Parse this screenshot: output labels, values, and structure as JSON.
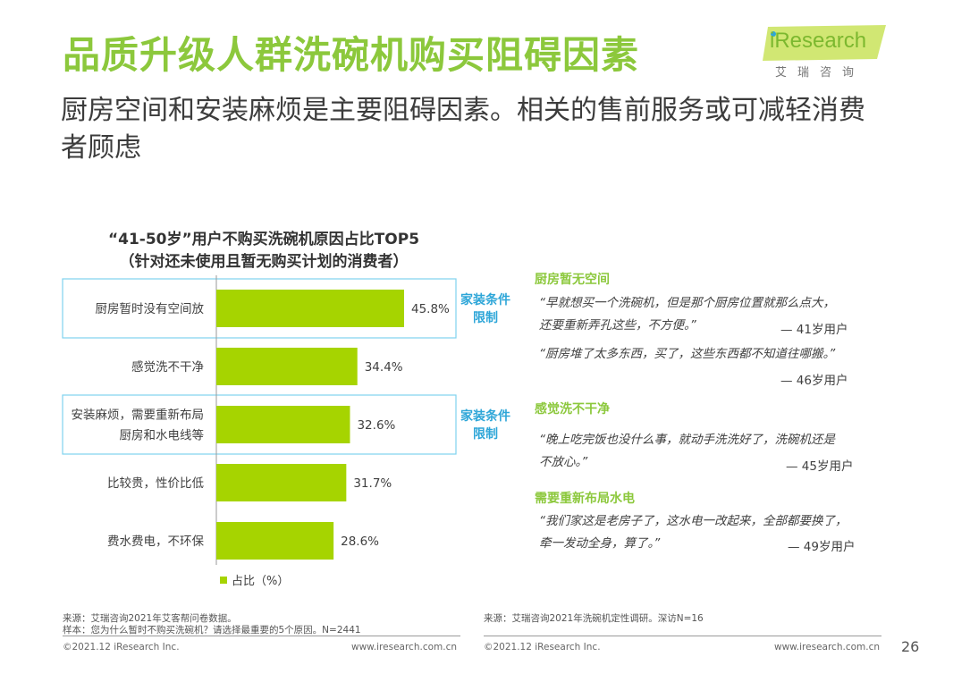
{
  "header": {
    "title": "品质升级人群洗碗机购买阻碍因素",
    "subtitle": "厨房空间和安装麻烦是主要阻碍因素。相关的售前服务或可减轻消费者顾虑"
  },
  "logo": {
    "brand": "iResearch",
    "brand_cn": "艾瑞咨询"
  },
  "chart_data": {
    "type": "bar",
    "orientation": "horizontal",
    "title": "“41-50岁”用户不购买洗碗机原因占比TOP5",
    "subtitle": "（针对还未使用且暂无购买计划的消费者）",
    "categories": [
      "厨房暂时没有空间放",
      "感觉洗不干净",
      "安装麻烦，需要重新布局厨房和水电线等",
      "比较贵，性价比低",
      "费水费电，不环保"
    ],
    "category_lines": [
      [
        "厨房暂时没有空间放"
      ],
      [
        "感觉洗不干净"
      ],
      [
        "安装麻烦，需要重新布局",
        "厨房和水电线等"
      ],
      [
        "比较贵，性价比低"
      ],
      [
        "费水费电，不环保"
      ]
    ],
    "values": [
      45.8,
      34.4,
      32.6,
      31.7,
      28.6
    ],
    "value_labels": [
      "45.8%",
      "34.4%",
      "32.6%",
      "31.7%",
      "28.6%"
    ],
    "xlim": [
      0,
      100
    ],
    "bar_color": "#A6D400",
    "highlight_color": "#7FD3EE",
    "highlighted_indices": [
      0,
      2
    ],
    "legend": "占比（%）",
    "legend_position": "bottom-left"
  },
  "tags": [
    {
      "lines": [
        "家装条件",
        "限制"
      ]
    },
    {
      "lines": [
        "家装条件",
        "限制"
      ]
    }
  ],
  "notes": {
    "kitchen_head": "厨房暂无空间",
    "q1_line1": "“早就想买一个洗碗机，但是那个厨房位置就那么点大，",
    "q1_line2": "还要重新弄孔这些，不方便。”",
    "q1_who": "— 41岁用户",
    "q2_line1": "“厨房堆了太多东西，买了，这些东西都不知道往哪搬。”",
    "q2_who": "— 46岁用户",
    "clean_head": "感觉洗不干净",
    "q3_line1": "“晚上吃完饭也没什么事，就动手洗洗好了，洗碗机还是",
    "q3_line2": "不放心。”",
    "q3_who": "— 45岁用户",
    "layout_head": "需要重新布局水电",
    "q4_line1": "“我们家这是老房子了，这水电一改起来，全部都要换了，",
    "q4_line2": "牵一发动全身，算了。”",
    "q4_who": "— 49岁用户"
  },
  "footer": {
    "source_left_1": "来源：艾瑞咨询2021年艾客帮问卷数据。",
    "source_left_2": "样本：您为什么暂时不购买洗碗机？请选择最重要的5个原因。N=2441",
    "source_right": "来源：艾瑞咨询2021年洗碗机定性调研。深访N=16",
    "copyright_left": "©2021.12 iResearch Inc.",
    "url_left": "www.iresearch.com.cn",
    "copyright_right": "©2021.12 iResearch Inc.",
    "url_right": "www.iresearch.com.cn",
    "page_number": "26"
  }
}
